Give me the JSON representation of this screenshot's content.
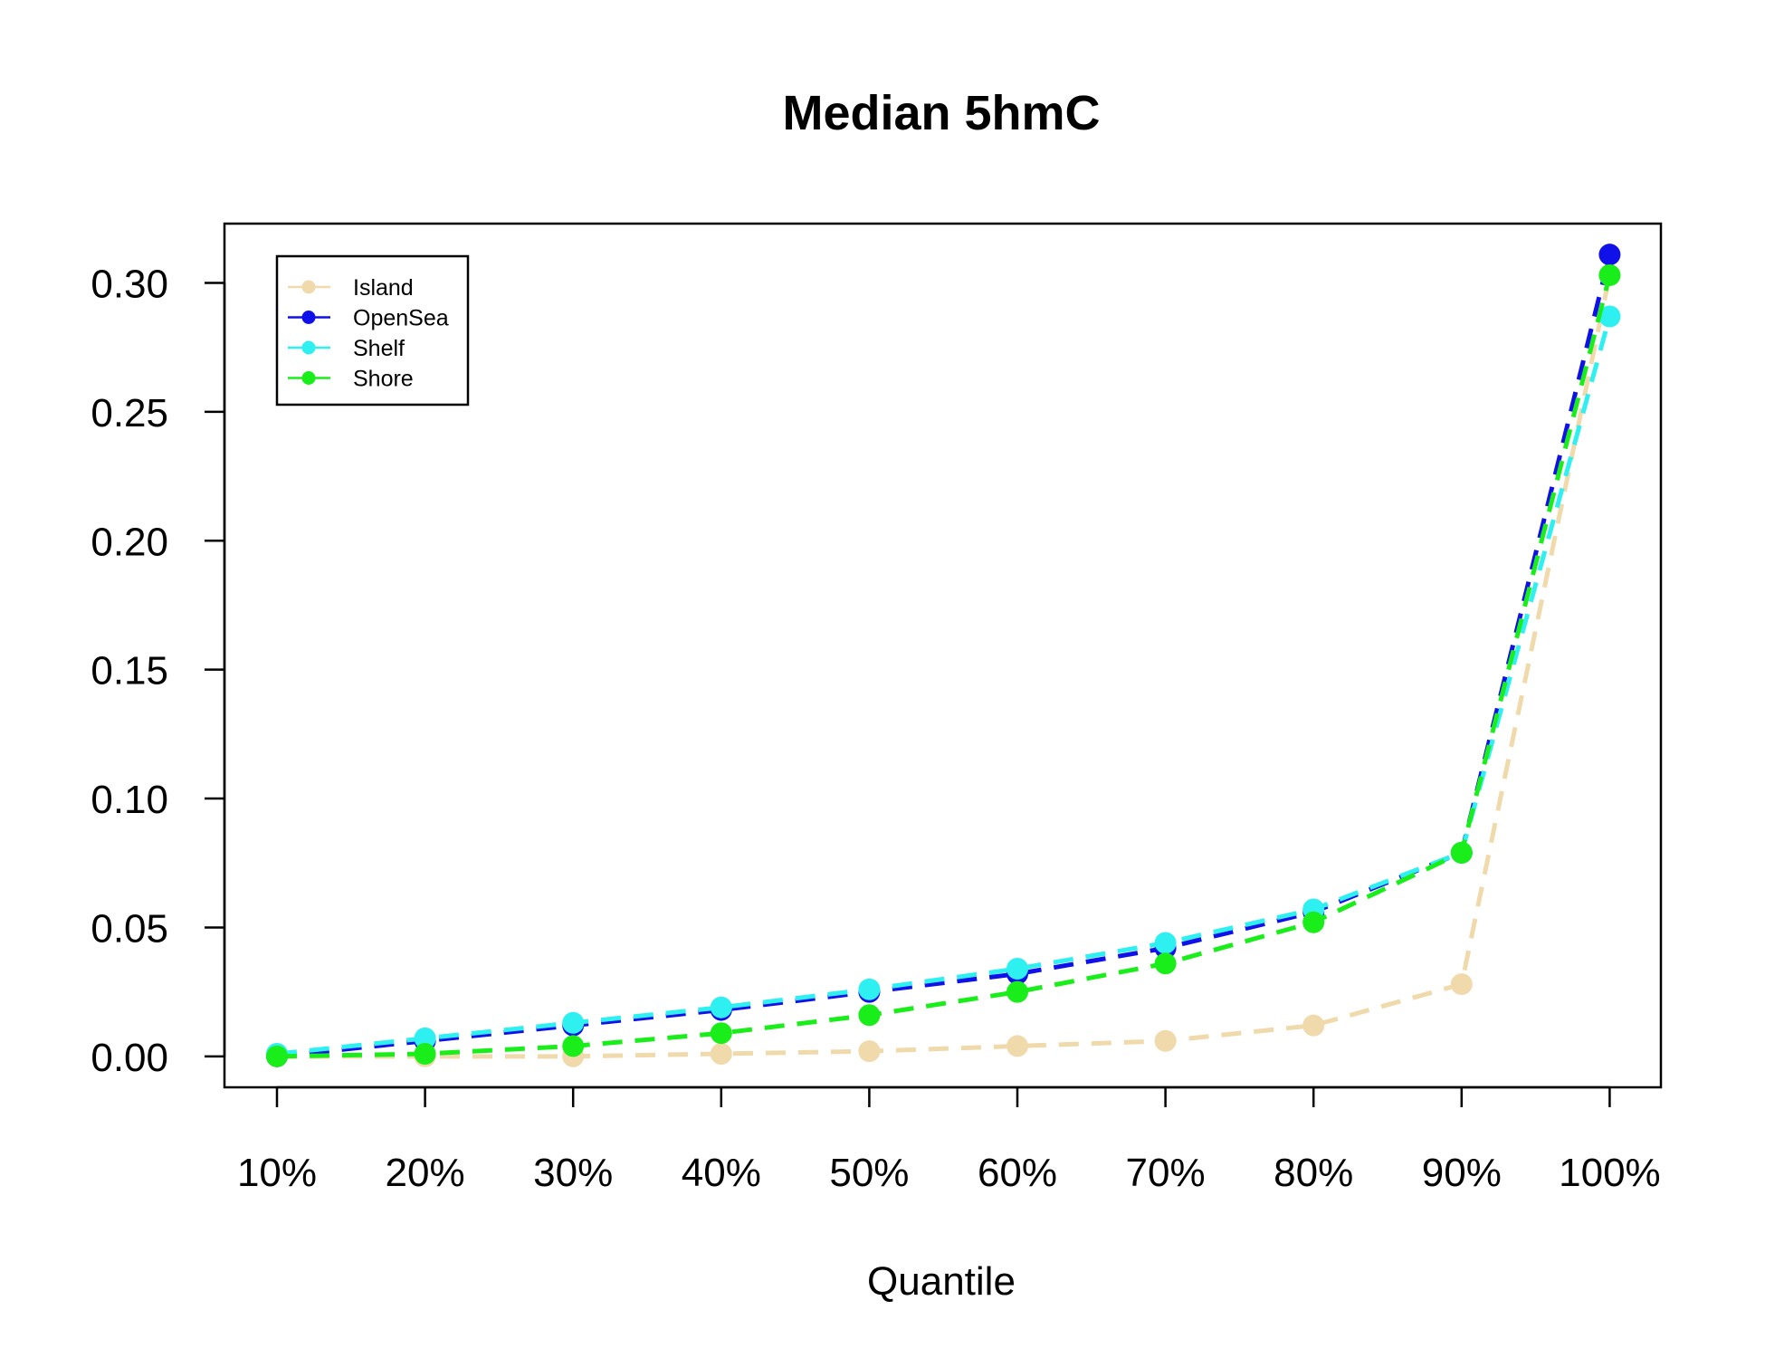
{
  "chart_data": {
    "type": "line",
    "title": "Median 5hmC",
    "xlabel": "Quantile",
    "ylabel": "",
    "categories": [
      "10%",
      "20%",
      "30%",
      "40%",
      "50%",
      "60%",
      "70%",
      "80%",
      "90%",
      "100%"
    ],
    "ylim": [
      -0.012,
      0.323
    ],
    "yticks": [
      "0.00",
      "0.05",
      "0.10",
      "0.15",
      "0.20",
      "0.25",
      "0.30"
    ],
    "grid": false,
    "legend_position": "top-left",
    "series": [
      {
        "name": "Island",
        "color": "#f0d9aa",
        "values": [
          0.0,
          0.0,
          0.0,
          0.001,
          0.002,
          0.004,
          0.006,
          0.012,
          0.028,
          0.303
        ]
      },
      {
        "name": "OpenSea",
        "color": "#1010e8",
        "values": [
          0.0,
          0.006,
          0.012,
          0.018,
          0.025,
          0.032,
          0.042,
          0.056,
          0.079,
          0.311
        ]
      },
      {
        "name": "Shelf",
        "color": "#2ef0f0",
        "values": [
          0.001,
          0.007,
          0.013,
          0.019,
          0.026,
          0.034,
          0.044,
          0.057,
          0.079,
          0.287
        ]
      },
      {
        "name": "Shore",
        "color": "#1aee1a",
        "values": [
          0.0,
          0.001,
          0.004,
          0.009,
          0.016,
          0.025,
          0.036,
          0.052,
          0.079,
          0.303
        ]
      }
    ]
  }
}
